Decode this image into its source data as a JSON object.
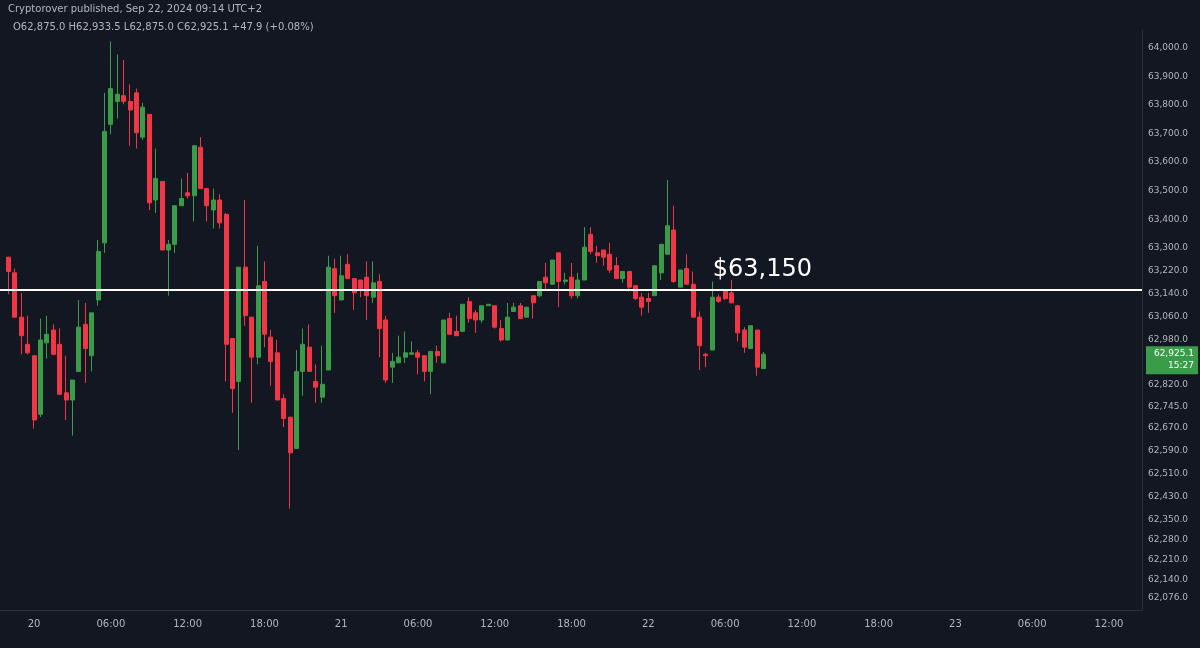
{
  "chart_data": {
    "type": "candlestick",
    "title": "O62,875.0 H62,933.5 L62,875.0 C62,925.1 +47.9 (+0.08%)",
    "annotations": [
      "Cryptorover published, Sep 22, 2024 09:14 UTC+2",
      "62,925.1",
      "15:27"
    ],
    "x": [
      "2024-09-19T22:00",
      "2024-09-19T22:30",
      "2024-09-19T23:00",
      "2024-09-19T23:30",
      "2024-09-20T00:00",
      "2024-09-20T00:30",
      "2024-09-20T01:00",
      "2024-09-20T01:30",
      "2024-09-20T02:00",
      "2024-09-20T02:30",
      "2024-09-20T03:00",
      "2024-09-20T03:30",
      "2024-09-20T04:00",
      "2024-09-20T04:30",
      "2024-09-20T05:00",
      "2024-09-20T05:30",
      "2024-09-20T06:00",
      "2024-09-20T06:30",
      "2024-09-20T07:00",
      "2024-09-20T07:30",
      "2024-09-20T08:00",
      "2024-09-20T08:30",
      "2024-09-20T09:00",
      "2024-09-20T09:30",
      "2024-09-20T10:00",
      "2024-09-20T10:30",
      "2024-09-20T11:00",
      "2024-09-20T11:30",
      "2024-09-20T12:00",
      "2024-09-20T12:30",
      "2024-09-20T13:00",
      "2024-09-20T13:30",
      "2024-09-20T14:00",
      "2024-09-20T14:30",
      "2024-09-20T15:00",
      "2024-09-20T15:30",
      "2024-09-20T16:00",
      "2024-09-20T16:30",
      "2024-09-20T17:00",
      "2024-09-20T17:30",
      "2024-09-20T18:00",
      "2024-09-20T18:30",
      "2024-09-20T19:00",
      "2024-09-20T19:30",
      "2024-09-20T20:00",
      "2024-09-20T20:30",
      "2024-09-20T21:00",
      "2024-09-20T21:30",
      "2024-09-20T22:00",
      "2024-09-20T22:30",
      "2024-09-20T23:00",
      "2024-09-20T23:30",
      "2024-09-21T00:00",
      "2024-09-21T00:30",
      "2024-09-21T01:00",
      "2024-09-21T01:30",
      "2024-09-21T02:00",
      "2024-09-21T02:30",
      "2024-09-21T03:00",
      "2024-09-21T03:30",
      "2024-09-21T04:00",
      "2024-09-21T04:30",
      "2024-09-21T05:00",
      "2024-09-21T05:30",
      "2024-09-21T06:00",
      "2024-09-21T06:30",
      "2024-09-21T07:00",
      "2024-09-21T07:30",
      "2024-09-21T08:00",
      "2024-09-21T08:30",
      "2024-09-21T09:00",
      "2024-09-21T09:30",
      "2024-09-21T10:00",
      "2024-09-21T10:30",
      "2024-09-21T11:00",
      "2024-09-21T11:30",
      "2024-09-21T12:00",
      "2024-09-21T12:30",
      "2024-09-21T13:00",
      "2024-09-21T13:30",
      "2024-09-21T14:00",
      "2024-09-21T14:30",
      "2024-09-21T15:00",
      "2024-09-21T15:30",
      "2024-09-21T16:00",
      "2024-09-21T16:30",
      "2024-09-21T17:00",
      "2024-09-21T17:30",
      "2024-09-21T18:00",
      "2024-09-21T18:30",
      "2024-09-21T19:00",
      "2024-09-21T19:30",
      "2024-09-21T20:00",
      "2024-09-21T20:30",
      "2024-09-21T21:00",
      "2024-09-21T21:30",
      "2024-09-21T22:00",
      "2024-09-21T22:30",
      "2024-09-21T23:00",
      "2024-09-21T23:30",
      "2024-09-22T00:00",
      "2024-09-22T00:30",
      "2024-09-22T01:00",
      "2024-09-22T01:30",
      "2024-09-22T02:00",
      "2024-09-22T02:30",
      "2024-09-22T03:00",
      "2024-09-22T03:30",
      "2024-09-22T04:00",
      "2024-09-22T04:30",
      "2024-09-22T05:00",
      "2024-09-22T05:30",
      "2024-09-22T06:00",
      "2024-09-22T06:30",
      "2024-09-22T07:00",
      "2024-09-22T07:30",
      "2024-09-22T08:00",
      "2024-09-22T08:30",
      "2024-09-22T09:00"
    ],
    "ohlc": [
      [
        63265,
        63265,
        63135,
        63215
      ],
      [
        63210,
        63225,
        63055,
        63055
      ],
      [
        63055,
        63140,
        62925,
        62990
      ],
      [
        62960,
        63060,
        62925,
        62930
      ],
      [
        62920,
        62920,
        62665,
        62695
      ],
      [
        62715,
        63050,
        62705,
        62975
      ],
      [
        62965,
        63060,
        62910,
        62995
      ],
      [
        63010,
        63030,
        62925,
        62925
      ],
      [
        62960,
        63015,
        62785,
        62785
      ],
      [
        62790,
        62920,
        62695,
        62765
      ],
      [
        62765,
        62835,
        62640,
        62835
      ],
      [
        62865,
        63115,
        62865,
        63020
      ],
      [
        63030,
        63105,
        62825,
        62945
      ],
      [
        62920,
        63070,
        62865,
        63070
      ],
      [
        63115,
        63325,
        63095,
        63285
      ],
      [
        63315,
        63840,
        63280,
        63705
      ],
      [
        63730,
        64020,
        63695,
        63855
      ],
      [
        63810,
        63975,
        63750,
        63835
      ],
      [
        63830,
        63955,
        63800,
        63810
      ],
      [
        63810,
        63870,
        63655,
        63780
      ],
      [
        63840,
        63855,
        63645,
        63700
      ],
      [
        63685,
        63805,
        63675,
        63790
      ],
      [
        63765,
        63765,
        63430,
        63455
      ],
      [
        63465,
        63645,
        63420,
        63540
      ],
      [
        63530,
        63530,
        63290,
        63290
      ],
      [
        63290,
        63325,
        63130,
        63310
      ],
      [
        63310,
        63445,
        63280,
        63445
      ],
      [
        63445,
        63540,
        63445,
        63470
      ],
      [
        63490,
        63560,
        63470,
        63480
      ],
      [
        63480,
        63655,
        63390,
        63655
      ],
      [
        63650,
        63685,
        63505,
        63505
      ],
      [
        63505,
        63505,
        63390,
        63445
      ],
      [
        63430,
        63505,
        63365,
        63465
      ],
      [
        63465,
        63485,
        63365,
        63385
      ],
      [
        63415,
        63420,
        62830,
        62960
      ],
      [
        62980,
        62980,
        62720,
        62805
      ],
      [
        62830,
        63230,
        62590,
        63230
      ],
      [
        63230,
        63465,
        63025,
        63060
      ],
      [
        63055,
        63055,
        62755,
        62915
      ],
      [
        62915,
        63305,
        62890,
        63165
      ],
      [
        63180,
        63250,
        62950,
        62995
      ],
      [
        62985,
        63010,
        62815,
        62900
      ],
      [
        62930,
        62975,
        62765,
        62765
      ],
      [
        62770,
        62785,
        62670,
        62700
      ],
      [
        62705,
        62705,
        62385,
        62580
      ],
      [
        62595,
        62940,
        62595,
        62865
      ],
      [
        62865,
        63015,
        62780,
        62960
      ],
      [
        62950,
        63030,
        62865,
        62865
      ],
      [
        62830,
        62890,
        62755,
        62810
      ],
      [
        62775,
        62955,
        62755,
        62820
      ],
      [
        62870,
        63270,
        62870,
        63230
      ],
      [
        63225,
        63260,
        63070,
        63130
      ],
      [
        63115,
        63270,
        63115,
        63200
      ],
      [
        63240,
        63275,
        63190,
        63190
      ],
      [
        63190,
        63190,
        63080,
        63140
      ],
      [
        63185,
        63185,
        63125,
        63150
      ],
      [
        63195,
        63250,
        63045,
        63130
      ],
      [
        63125,
        63250,
        63105,
        63175
      ],
      [
        63180,
        63205,
        62915,
        63015
      ],
      [
        63045,
        63060,
        62825,
        62835
      ],
      [
        62880,
        62930,
        62825,
        62900
      ],
      [
        62895,
        62990,
        62895,
        62915
      ],
      [
        62915,
        63005,
        62895,
        62930
      ],
      [
        62925,
        62970,
        62925,
        62930
      ],
      [
        62930,
        62940,
        62855,
        62915
      ],
      [
        62920,
        62920,
        62830,
        62865
      ],
      [
        62865,
        62935,
        62785,
        62935
      ],
      [
        62935,
        62955,
        62895,
        62920
      ],
      [
        62895,
        63045,
        62895,
        63045
      ],
      [
        63050,
        63070,
        62995,
        62995
      ],
      [
        63005,
        63060,
        62990,
        62990
      ],
      [
        63005,
        63100,
        63005,
        63100
      ],
      [
        63110,
        63125,
        63035,
        63050
      ],
      [
        63070,
        63080,
        63000,
        63045
      ],
      [
        63045,
        63095,
        63035,
        63095
      ],
      [
        63095,
        63100,
        63095,
        63100
      ],
      [
        63095,
        63095,
        63015,
        63020
      ],
      [
        63015,
        63045,
        62970,
        62975
      ],
      [
        62975,
        63105,
        62975,
        63055
      ],
      [
        63075,
        63105,
        63075,
        63090
      ],
      [
        63095,
        63105,
        63050,
        63050
      ],
      [
        63055,
        63090,
        63055,
        63090
      ],
      [
        63130,
        63130,
        63050,
        63105
      ],
      [
        63130,
        63180,
        63125,
        63180
      ],
      [
        63195,
        63245,
        63150,
        63175
      ],
      [
        63170,
        63255,
        63170,
        63255
      ],
      [
        63280,
        63280,
        63090,
        63180
      ],
      [
        63180,
        63210,
        63170,
        63185
      ],
      [
        63195,
        63245,
        63120,
        63130
      ],
      [
        63130,
        63210,
        63120,
        63185
      ],
      [
        63185,
        63370,
        63185,
        63300
      ],
      [
        63345,
        63370,
        63275,
        63285
      ],
      [
        63280,
        63305,
        63245,
        63270
      ],
      [
        63290,
        63290,
        63235,
        63265
      ],
      [
        63275,
        63315,
        63210,
        63220
      ],
      [
        63235,
        63265,
        63190,
        63190
      ],
      [
        63190,
        63215,
        63175,
        63215
      ],
      [
        63215,
        63215,
        63145,
        63160
      ],
      [
        63165,
        63165,
        63115,
        63120
      ],
      [
        63125,
        63140,
        63060,
        63090
      ],
      [
        63120,
        63140,
        63070,
        63110
      ],
      [
        63130,
        63235,
        63130,
        63235
      ],
      [
        63210,
        63310,
        63185,
        63310
      ],
      [
        63275,
        63535,
        63275,
        63375
      ],
      [
        63360,
        63445,
        63175,
        63180
      ],
      [
        63160,
        63220,
        63160,
        63220
      ],
      [
        63225,
        63275,
        63170,
        63170
      ],
      [
        63170,
        63215,
        63055,
        63055
      ],
      [
        63055,
        63075,
        62870,
        62955
      ],
      [
        62925,
        62930,
        62880,
        62920
      ],
      [
        62940,
        63180,
        62940,
        63125
      ],
      [
        63125,
        63135,
        63105,
        63110
      ],
      [
        63150,
        63150,
        63115,
        63120
      ],
      [
        63140,
        63185,
        63105,
        63105
      ],
      [
        63095,
        63095,
        62970,
        63000
      ],
      [
        63010,
        63020,
        62930,
        62950
      ],
      [
        62945,
        63025,
        62945,
        63025
      ],
      [
        63010,
        63010,
        62850,
        62880
      ],
      [
        62875,
        62933.5,
        62875,
        62925.1
      ]
    ],
    "xlim": [
      "2024-09-19T21:20",
      "2024-09-23T14:35"
    ],
    "xticks": [
      {
        "value": "2024-09-20T00:00",
        "label": "20"
      },
      {
        "value": "2024-09-20T06:00",
        "label": "06:00"
      },
      {
        "value": "2024-09-20T12:00",
        "label": "12:00"
      },
      {
        "value": "2024-09-20T18:00",
        "label": "18:00"
      },
      {
        "value": "2024-09-21T00:00",
        "label": "21"
      },
      {
        "value": "2024-09-21T06:00",
        "label": "06:00"
      },
      {
        "value": "2024-09-21T12:00",
        "label": "12:00"
      },
      {
        "value": "2024-09-21T18:00",
        "label": "18:00"
      },
      {
        "value": "2024-09-22T00:00",
        "label": "22"
      },
      {
        "value": "2024-09-22T06:00",
        "label": "06:00"
      },
      {
        "value": "2024-09-22T12:00",
        "label": "12:00"
      },
      {
        "value": "2024-09-22T18:00",
        "label": "18:00"
      },
      {
        "value": "2024-09-23T00:00",
        "label": "23"
      },
      {
        "value": "2024-09-23T06:00",
        "label": "06:00"
      },
      {
        "value": "2024-09-23T12:00",
        "label": "12:00"
      }
    ],
    "ylim": [
      62030,
      64060
    ],
    "yticks": [
      {
        "value": 64000,
        "label": "64,000.0"
      },
      {
        "value": 63900,
        "label": "63,900.0"
      },
      {
        "value": 63800,
        "label": "63,800.0"
      },
      {
        "value": 63700,
        "label": "63,700.0"
      },
      {
        "value": 63600,
        "label": "63,600.0"
      },
      {
        "value": 63500,
        "label": "63,500.0"
      },
      {
        "value": 63400,
        "label": "63,400.0"
      },
      {
        "value": 63300,
        "label": "63,300.0"
      },
      {
        "value": 63220,
        "label": "63,220.0"
      },
      {
        "value": 63140,
        "label": "63,140.0"
      },
      {
        "value": 63060,
        "label": "63,060.0"
      },
      {
        "value": 62980,
        "label": "62,980.0"
      },
      {
        "value": 62820,
        "label": "62,820.0"
      },
      {
        "value": 62745,
        "label": "62,745.0"
      },
      {
        "value": 62670,
        "label": "62,670.0"
      },
      {
        "value": 62590,
        "label": "62,590.0"
      },
      {
        "value": 62510,
        "label": "62,510.0"
      },
      {
        "value": 62430,
        "label": "62,430.0"
      },
      {
        "value": 62350,
        "label": "62,350.0"
      },
      {
        "value": 62280,
        "label": "62,280.0"
      },
      {
        "value": 62210,
        "label": "62,210.0"
      },
      {
        "value": 62140,
        "label": "62,140.0"
      },
      {
        "value": 62076,
        "label": "62,076.0"
      }
    ],
    "ref_lines": [
      {
        "axis": "y",
        "value": 63150,
        "label": "$63,150",
        "color": "#ffffff"
      }
    ],
    "grid": false
  }
}
